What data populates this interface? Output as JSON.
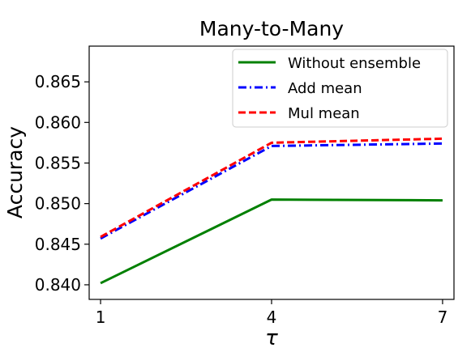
{
  "chart_data": {
    "type": "line",
    "title": "Many-to-Many",
    "xlabel": "τ",
    "ylabel": "Accuracy",
    "x": [
      1,
      4,
      7
    ],
    "x_ticks": [
      "1",
      "4",
      "7"
    ],
    "xlim": [
      0.8,
      7.2
    ],
    "ylim": [
      0.8382,
      0.8694
    ],
    "y_ticks": [
      "0.840",
      "0.845",
      "0.850",
      "0.855",
      "0.860",
      "0.865"
    ],
    "y_tick_values": [
      0.84,
      0.845,
      0.85,
      0.855,
      0.86,
      0.865
    ],
    "grid": false,
    "legend_position": "top-right",
    "series": [
      {
        "name": "Without ensemble",
        "values": [
          0.8402,
          0.8505,
          0.8504
        ],
        "color": "#008000",
        "style": "solid"
      },
      {
        "name": "Add mean",
        "values": [
          0.8457,
          0.8571,
          0.8574
        ],
        "color": "#0000ff",
        "style": "dashdot"
      },
      {
        "name": "Mul mean",
        "values": [
          0.8459,
          0.8575,
          0.858
        ],
        "color": "#ff0000",
        "style": "dashed"
      }
    ]
  }
}
